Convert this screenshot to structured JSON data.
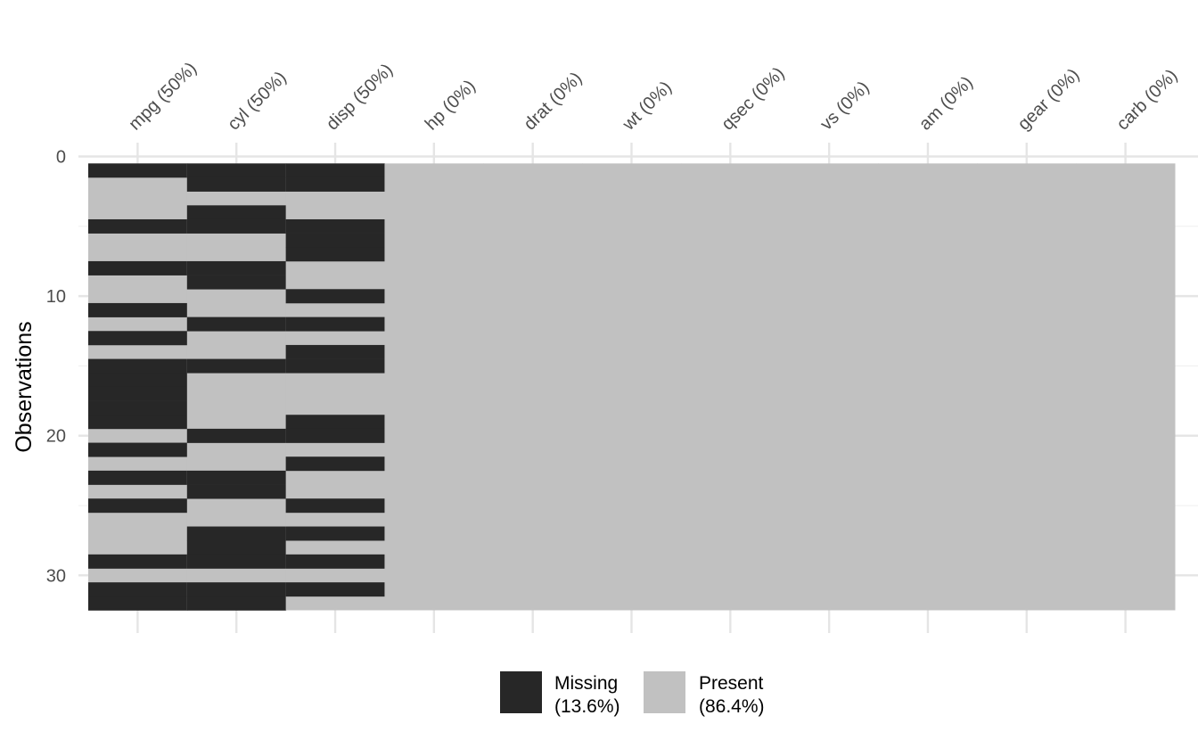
{
  "chart_data": {
    "type": "heatmap",
    "ylabel": "Observations",
    "columns": [
      {
        "name": "mpg",
        "label": "mpg (50%)"
      },
      {
        "name": "cyl",
        "label": "cyl (50%)"
      },
      {
        "name": "disp",
        "label": "disp (50%)"
      },
      {
        "name": "hp",
        "label": "hp (0%)"
      },
      {
        "name": "drat",
        "label": "drat (0%)"
      },
      {
        "name": "wt",
        "label": "wt (0%)"
      },
      {
        "name": "qsec",
        "label": "qsec (0%)"
      },
      {
        "name": "vs",
        "label": "vs (0%)"
      },
      {
        "name": "am",
        "label": "am (0%)"
      },
      {
        "name": "gear",
        "label": "gear (0%)"
      },
      {
        "name": "carb",
        "label": "carb (0%)"
      }
    ],
    "n_observations": 32,
    "y_ticks": [
      "0",
      "10",
      "20",
      "30"
    ],
    "y_tick_values": [
      0,
      10,
      20,
      30
    ],
    "ylim": [
      0,
      32
    ],
    "missing_rows": {
      "mpg": [
        1,
        5,
        8,
        11,
        13,
        15,
        16,
        17,
        18,
        19,
        21,
        23,
        25,
        29,
        31,
        32
      ],
      "cyl": [
        1,
        2,
        4,
        5,
        8,
        9,
        12,
        15,
        20,
        23,
        24,
        27,
        28,
        29,
        31,
        32
      ],
      "disp": [
        1,
        2,
        5,
        6,
        7,
        10,
        12,
        14,
        15,
        19,
        20,
        22,
        25,
        27,
        29,
        31
      ],
      "hp": [],
      "drat": [],
      "wt": [],
      "qsec": [],
      "vs": [],
      "am": [],
      "gear": [],
      "carb": []
    },
    "legend": [
      {
        "key": "missing",
        "label_line1": "Missing",
        "label_line2": "(13.6%)",
        "color": "#272727"
      },
      {
        "key": "present",
        "label_line1": "Present",
        "label_line2": "(86.4%)",
        "color": "#c1c1c1"
      }
    ],
    "grid": true,
    "legend_position": "bottom"
  }
}
